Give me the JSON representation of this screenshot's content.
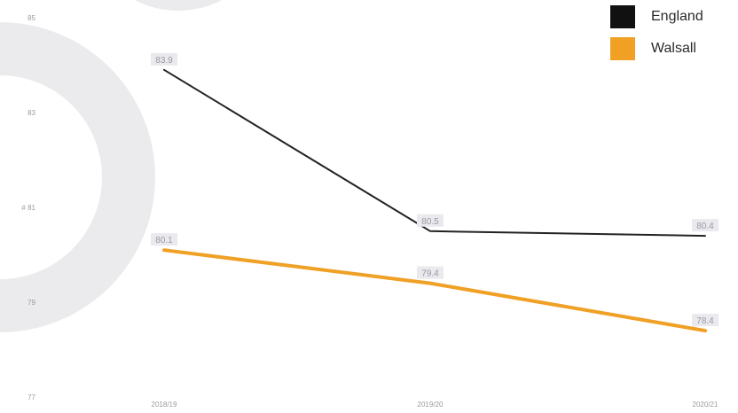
{
  "chart_data": {
    "type": "line",
    "categories": [
      "2018/19",
      "2019/20",
      "2020/21"
    ],
    "series": [
      {
        "name": "England",
        "color": "#222222",
        "values": [
          83.9,
          80.5,
          80.4
        ],
        "labels": [
          "83.9",
          "80.5",
          "80.4"
        ]
      },
      {
        "name": "Walsall",
        "color": "#f0a025",
        "values": [
          80.1,
          79.4,
          78.4
        ],
        "labels": [
          "80.1",
          "79.4",
          "78.4"
        ]
      }
    ],
    "ylim": [
      77,
      85
    ],
    "y_ticks": [
      "85",
      "83",
      "81",
      "79",
      "77"
    ],
    "ylabel": "#",
    "grid": false,
    "legend_position": "top-right",
    "background_shape_color": "#ebebed"
  }
}
